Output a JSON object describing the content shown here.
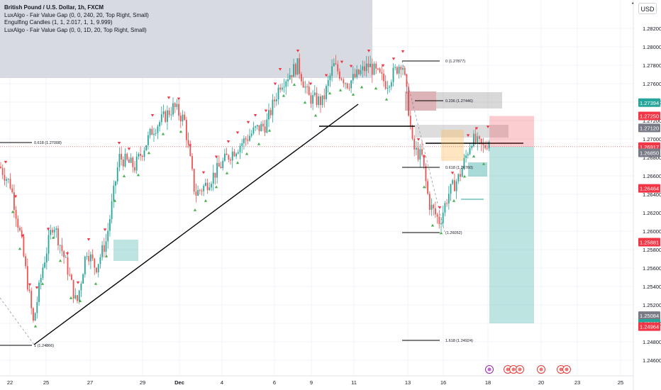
{
  "chart_data": {
    "type": "candlestick",
    "title": "British Pound / U.S. Dollar, 1h, FXCM",
    "indicators": [
      "LuxAlgo - Fair Value Gap (0, 0, 240, 20, Top Right, Small)",
      "Engulfing Candles (1, 1, 2.017, 1, 1, 9.999)",
      "LuxAlgo - Fair Value Gap (0, 0, 1D, 20, Top Right, Small)"
    ],
    "currency": "USD",
    "x_tick_labels": [
      "22",
      "25",
      "27",
      "29",
      "Dec",
      "4",
      "6",
      "9",
      "11",
      "13",
      "16",
      "18",
      "20",
      "23",
      "25"
    ],
    "y_tick_labels": [
      "1.28200",
      "1.28000",
      "1.27800",
      "1.27600",
      "1.27400",
      "1.27200",
      "1.27000",
      "1.26800",
      "1.26600",
      "1.26400",
      "1.26200",
      "1.26000",
      "1.25800",
      "1.25600",
      "1.25400",
      "1.25200",
      "1.25000",
      "1.24800",
      "1.24600"
    ],
    "ylim": [
      1.2455,
      1.2835
    ],
    "price_badges": [
      {
        "value": "1.27394",
        "color": "#26a69a"
      },
      {
        "value": "1.27250",
        "color": "#f23645"
      },
      {
        "value": "1.27120",
        "color": "#787b86"
      },
      {
        "value": "1.26917",
        "color": "#f23645"
      },
      {
        "value": "1.26850",
        "color": "#787b86"
      },
      {
        "value": "1.26464",
        "color": "#f23645"
      },
      {
        "value": "1.25881",
        "color": "#f23645"
      },
      {
        "value": "1.25084",
        "color": "#787b86"
      },
      {
        "value": "1.25000",
        "color": "#26a69a"
      },
      {
        "value": "1.24964",
        "color": "#f23645"
      }
    ],
    "fib_labels": [
      {
        "text": "0 (1.27877)",
        "price": 1.27877
      },
      {
        "text": "0.236 (1.27446)",
        "price": 1.27446
      },
      {
        "text": "0.618 (1.27008)",
        "price": 1.27008
      },
      {
        "text": "0.618 (1.26760)",
        "price": 1.2676
      },
      {
        "text": "(1.26052)",
        "price": 1.26052
      },
      {
        "text": "1 (1.24866)",
        "price": 1.24866
      },
      {
        "text": "1.618 (1.24924)",
        "price": 1.24924
      }
    ],
    "position": {
      "entry": 1.26917,
      "stop": 1.2725,
      "target": 1.25
    },
    "current_price": 1.26917,
    "colors": {
      "up": "#26a69a",
      "down": "#ef5350",
      "grid": "#f0f3fa",
      "text": "#131722",
      "axis_text": "#131722"
    }
  }
}
